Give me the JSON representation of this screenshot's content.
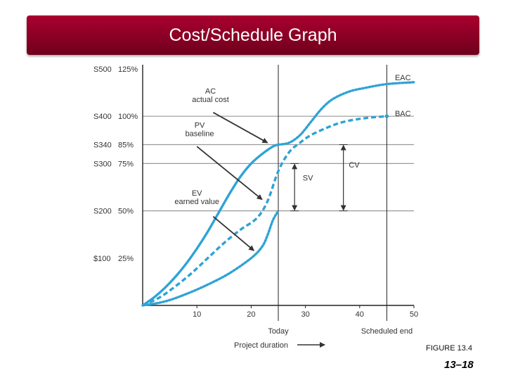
{
  "slide": {
    "title": "Cost/Schedule Graph",
    "figure_label": "FIGURE 13.4",
    "page_number": "13–18"
  },
  "chart_data": {
    "type": "line",
    "title": "",
    "xlabel": "Project duration",
    "xlim": [
      0,
      50
    ],
    "ylim": [
      0,
      125
    ],
    "x_ticks": [
      10,
      20,
      30,
      40,
      50
    ],
    "y_ticks": [
      {
        "value": 25,
        "dollar": "$100",
        "percent": "25%"
      },
      {
        "value": 50,
        "dollar": "S200",
        "percent": "50%"
      },
      {
        "value": 75,
        "dollar": "S300",
        "percent": "75%"
      },
      {
        "value": 85,
        "dollar": "S340",
        "percent": "85%"
      },
      {
        "value": 100,
        "dollar": "S400",
        "percent": "100%"
      },
      {
        "value": 125,
        "dollar": "S500",
        "percent": "125%"
      }
    ],
    "gridlines_y": [
      50,
      75,
      85,
      100
    ],
    "today": {
      "x": 25,
      "label": "Today"
    },
    "scheduled_end": {
      "x": 45,
      "label": "Scheduled end"
    },
    "series": [
      {
        "key": "ac",
        "style": "solid",
        "x": [
          0,
          2,
          4,
          6,
          8,
          10,
          12,
          14,
          16,
          18,
          20,
          22,
          24,
          25
        ],
        "y": [
          0,
          4,
          9,
          15,
          22,
          30,
          39,
          49,
          59,
          68,
          75,
          80,
          84,
          85
        ]
      },
      {
        "key": "ac_projected",
        "style": "dotted",
        "x": [
          25,
          27,
          29,
          31,
          33,
          35,
          38,
          41,
          45,
          50
        ],
        "y": [
          85,
          86,
          90,
          97,
          104,
          109,
          113,
          115,
          117,
          118
        ]
      },
      {
        "key": "pv",
        "style": "dashed",
        "x": [
          0,
          3,
          6,
          9,
          12,
          15,
          18,
          21,
          23,
          25,
          27,
          29,
          31,
          34,
          37,
          41,
          45
        ],
        "y": [
          0,
          4,
          10,
          17,
          25,
          33,
          40,
          46,
          55,
          71,
          81,
          86,
          90,
          94,
          97,
          99,
          100
        ]
      },
      {
        "key": "ev",
        "style": "dotted",
        "x": [
          0,
          4,
          8,
          12,
          16,
          20,
          22,
          23,
          24,
          25
        ],
        "y": [
          0,
          2,
          6,
          11,
          17,
          25,
          31,
          37,
          45,
          50
        ]
      }
    ],
    "annotations": [
      {
        "key": "eac",
        "lines": [
          "EAC"
        ],
        "x": 46.5,
        "y": 119
      },
      {
        "key": "bac",
        "lines": [
          "BAC"
        ],
        "x": 46.5,
        "y": 100
      },
      {
        "key": "ac",
        "lines": [
          "AC",
          "actual cost"
        ],
        "x": 12.5,
        "y": 112
      },
      {
        "key": "pv",
        "lines": [
          "PV",
          "baseline"
        ],
        "x": 10.5,
        "y": 94
      },
      {
        "key": "ev",
        "lines": [
          "EV",
          "earned value"
        ],
        "x": 10,
        "y": 58
      },
      {
        "key": "sv",
        "lines": [
          "SV"
        ],
        "x": 29.5,
        "y": 66
      },
      {
        "key": "cv",
        "lines": [
          "CV"
        ],
        "x": 38,
        "y": 73
      }
    ],
    "variance_bars": [
      {
        "key": "sv",
        "x": 28,
        "y_from": 50,
        "y_to": 75
      },
      {
        "key": "cv",
        "x": 37,
        "y_from": 50,
        "y_to": 85
      }
    ],
    "pointer_arrows": [
      {
        "key": "ac",
        "from": [
          13,
          102
        ],
        "to": [
          23,
          86
        ]
      },
      {
        "key": "pv",
        "from": [
          10,
          84
        ],
        "to": [
          22,
          56
        ]
      },
      {
        "key": "ev",
        "from": [
          13,
          47
        ],
        "to": [
          20.5,
          29
        ]
      }
    ],
    "colors": {
      "curve": "#2ea3d6",
      "ink": "#333333",
      "grid": "#999999"
    }
  }
}
